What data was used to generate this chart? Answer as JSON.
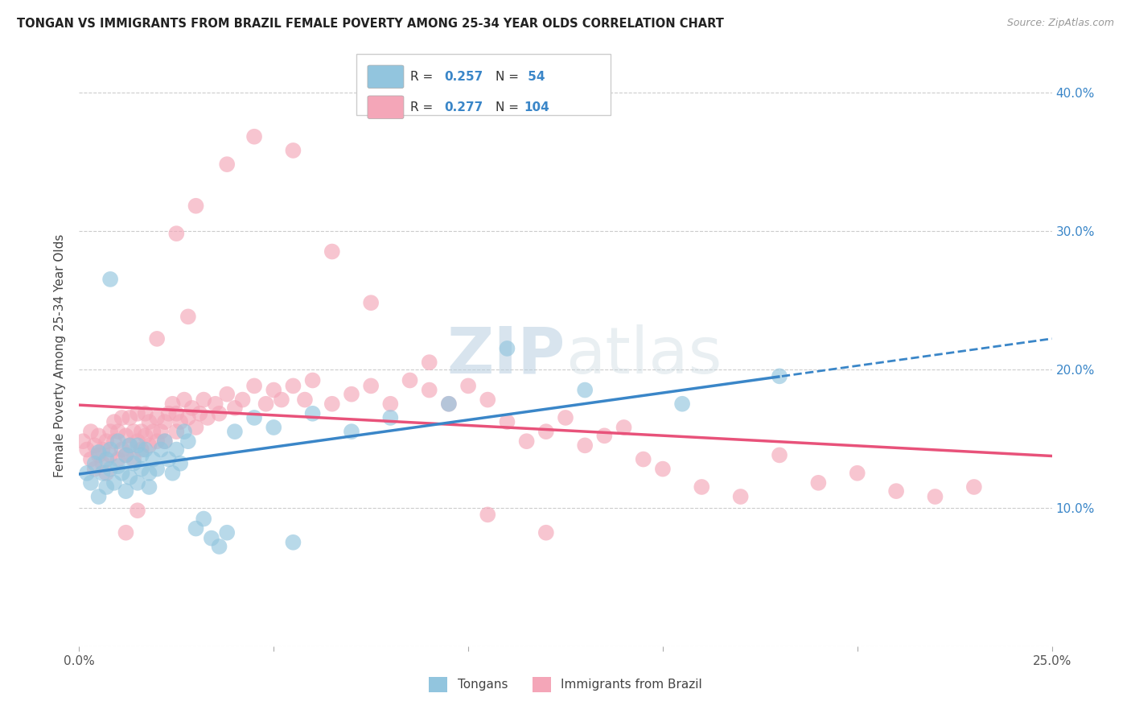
{
  "title": "TONGAN VS IMMIGRANTS FROM BRAZIL FEMALE POVERTY AMONG 25-34 YEAR OLDS CORRELATION CHART",
  "source": "Source: ZipAtlas.com",
  "ylabel": "Female Poverty Among 25-34 Year Olds",
  "x_min": 0.0,
  "x_max": 0.25,
  "y_min": 0.0,
  "y_max": 0.42,
  "blue_R": "0.257",
  "blue_N": "54",
  "pink_R": "0.277",
  "pink_N": "104",
  "blue_color": "#92c5de",
  "pink_color": "#f4a6b8",
  "blue_line_color": "#3a86c8",
  "pink_line_color": "#e8527a",
  "watermark": "ZIPatlas",
  "blue_x": [
    0.002,
    0.003,
    0.004,
    0.005,
    0.005,
    0.006,
    0.007,
    0.007,
    0.008,
    0.008,
    0.009,
    0.01,
    0.01,
    0.011,
    0.012,
    0.012,
    0.013,
    0.013,
    0.014,
    0.015,
    0.015,
    0.016,
    0.016,
    0.017,
    0.018,
    0.018,
    0.019,
    0.02,
    0.021,
    0.022,
    0.023,
    0.024,
    0.025,
    0.026,
    0.027,
    0.028,
    0.03,
    0.032,
    0.034,
    0.036,
    0.038,
    0.04,
    0.045,
    0.05,
    0.055,
    0.06,
    0.07,
    0.08,
    0.095,
    0.11,
    0.13,
    0.155,
    0.18,
    0.008
  ],
  "blue_y": [
    0.125,
    0.118,
    0.132,
    0.14,
    0.108,
    0.125,
    0.135,
    0.115,
    0.128,
    0.142,
    0.118,
    0.13,
    0.148,
    0.125,
    0.138,
    0.112,
    0.145,
    0.122,
    0.132,
    0.118,
    0.145,
    0.128,
    0.138,
    0.142,
    0.125,
    0.115,
    0.135,
    0.128,
    0.142,
    0.148,
    0.135,
    0.125,
    0.142,
    0.132,
    0.155,
    0.148,
    0.085,
    0.092,
    0.078,
    0.072,
    0.082,
    0.155,
    0.165,
    0.158,
    0.075,
    0.168,
    0.155,
    0.165,
    0.175,
    0.215,
    0.185,
    0.175,
    0.195,
    0.265
  ],
  "pink_x": [
    0.001,
    0.002,
    0.003,
    0.003,
    0.004,
    0.004,
    0.005,
    0.005,
    0.006,
    0.006,
    0.007,
    0.007,
    0.008,
    0.008,
    0.009,
    0.009,
    0.01,
    0.01,
    0.011,
    0.011,
    0.012,
    0.012,
    0.013,
    0.013,
    0.014,
    0.014,
    0.015,
    0.015,
    0.016,
    0.016,
    0.017,
    0.017,
    0.018,
    0.018,
    0.019,
    0.02,
    0.02,
    0.021,
    0.022,
    0.022,
    0.023,
    0.024,
    0.025,
    0.025,
    0.026,
    0.027,
    0.028,
    0.029,
    0.03,
    0.031,
    0.032,
    0.033,
    0.035,
    0.036,
    0.038,
    0.04,
    0.042,
    0.045,
    0.048,
    0.05,
    0.052,
    0.055,
    0.058,
    0.06,
    0.065,
    0.07,
    0.075,
    0.08,
    0.085,
    0.09,
    0.095,
    0.1,
    0.105,
    0.11,
    0.115,
    0.12,
    0.125,
    0.13,
    0.135,
    0.14,
    0.145,
    0.15,
    0.16,
    0.17,
    0.18,
    0.19,
    0.2,
    0.21,
    0.22,
    0.23,
    0.025,
    0.03,
    0.038,
    0.045,
    0.055,
    0.065,
    0.075,
    0.09,
    0.105,
    0.12,
    0.02,
    0.028,
    0.015,
    0.012
  ],
  "pink_y": [
    0.148,
    0.142,
    0.135,
    0.155,
    0.128,
    0.145,
    0.138,
    0.152,
    0.142,
    0.132,
    0.148,
    0.125,
    0.155,
    0.138,
    0.148,
    0.162,
    0.135,
    0.155,
    0.142,
    0.165,
    0.138,
    0.152,
    0.145,
    0.165,
    0.155,
    0.135,
    0.148,
    0.168,
    0.155,
    0.142,
    0.152,
    0.168,
    0.145,
    0.162,
    0.155,
    0.148,
    0.165,
    0.155,
    0.162,
    0.148,
    0.168,
    0.175,
    0.155,
    0.168,
    0.162,
    0.178,
    0.165,
    0.172,
    0.158,
    0.168,
    0.178,
    0.165,
    0.175,
    0.168,
    0.182,
    0.172,
    0.178,
    0.188,
    0.175,
    0.185,
    0.178,
    0.188,
    0.178,
    0.192,
    0.175,
    0.182,
    0.188,
    0.175,
    0.192,
    0.185,
    0.175,
    0.188,
    0.178,
    0.162,
    0.148,
    0.155,
    0.165,
    0.145,
    0.152,
    0.158,
    0.135,
    0.128,
    0.115,
    0.108,
    0.138,
    0.118,
    0.125,
    0.112,
    0.108,
    0.115,
    0.298,
    0.318,
    0.348,
    0.368,
    0.358,
    0.285,
    0.248,
    0.205,
    0.095,
    0.082,
    0.222,
    0.238,
    0.098,
    0.082
  ]
}
